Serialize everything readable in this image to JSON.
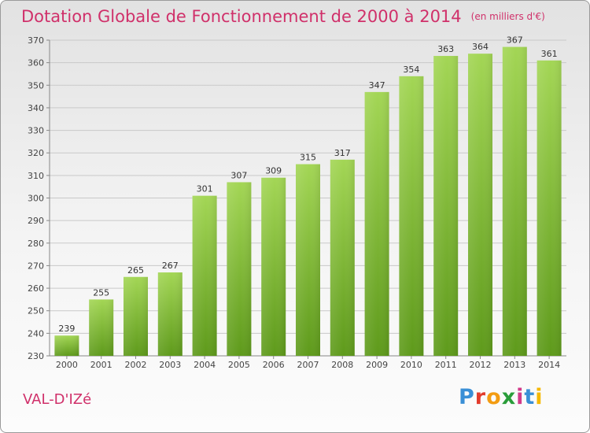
{
  "header": {
    "title": "Dotation Globale de Fonctionnement de 2000 à 2014",
    "unit": "(en milliers d'€)"
  },
  "footer": {
    "city": "VAL-D'IZé",
    "logo_letters": [
      "P",
      "r",
      "o",
      "x",
      "i",
      "t",
      "i"
    ],
    "logo_colors": [
      "#3a8fd6",
      "#e23c2c",
      "#f39c12",
      "#2a9d3a",
      "#d23a8a",
      "#3a8fd6",
      "#f5b800"
    ]
  },
  "chart_data": {
    "type": "bar",
    "title": "Dotation Globale de Fonctionnement de 2000 à 2014",
    "subtitle": "(en milliers d'€)",
    "xlabel": "",
    "ylabel": "",
    "categories": [
      "2000",
      "2001",
      "2002",
      "2003",
      "2004",
      "2005",
      "2006",
      "2007",
      "2008",
      "2009",
      "2010",
      "2011",
      "2012",
      "2013",
      "2014"
    ],
    "values": [
      239,
      255,
      265,
      267,
      301,
      307,
      309,
      315,
      317,
      347,
      354,
      363,
      364,
      367,
      361
    ],
    "ylim": [
      230,
      370
    ],
    "yticks": [
      230,
      240,
      250,
      260,
      270,
      280,
      290,
      300,
      310,
      320,
      330,
      340,
      350,
      360,
      370
    ],
    "grid": true,
    "bar_color_top": "#a3d655",
    "bar_color_bottom": "#5e9a1b"
  }
}
